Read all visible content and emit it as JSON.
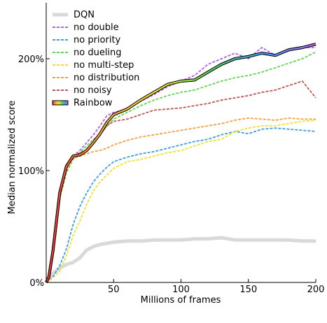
{
  "chart_data": {
    "type": "line",
    "xlabel": "Millions of frames",
    "ylabel": "Median normalized score",
    "xlim": [
      0,
      200
    ],
    "ylim": [
      0,
      250
    ],
    "x_ticks": [
      50,
      100,
      150,
      200
    ],
    "y_ticks": [
      0,
      100,
      200
    ],
    "x_tick_labels": [
      "50",
      "100",
      "150",
      "200"
    ],
    "y_tick_labels": [
      "0%",
      "100%",
      "200%"
    ],
    "grid": false,
    "legend_position": "top-left",
    "series": [
      {
        "name": "DQN",
        "color": "#d9d9d9",
        "width": 5,
        "x": [
          0,
          5,
          10,
          15,
          20,
          25,
          30,
          35,
          40,
          45,
          50,
          60,
          70,
          80,
          90,
          100,
          110,
          120,
          130,
          140,
          150,
          160,
          170,
          180,
          190,
          200
        ],
        "y": [
          0,
          8,
          13,
          16,
          18,
          22,
          29,
          32,
          34,
          35,
          36,
          37,
          37,
          38,
          38,
          38,
          39,
          39,
          40,
          38,
          38,
          38,
          38,
          38,
          37,
          37
        ]
      },
      {
        "name": "no double",
        "color": "#b55ee8",
        "width": 1.8,
        "dash": "4,2",
        "x": [
          0,
          2,
          5,
          10,
          15,
          20,
          25,
          30,
          35,
          40,
          45,
          50,
          60,
          70,
          80,
          90,
          100,
          110,
          120,
          130,
          140,
          150,
          160,
          170,
          180,
          190,
          200
        ],
        "y": [
          0,
          5,
          28,
          80,
          102,
          113,
          118,
          125,
          132,
          140,
          149,
          152,
          155,
          162,
          168,
          175,
          180,
          185,
          195,
          200,
          205,
          200,
          210,
          203,
          207,
          210,
          210
        ]
      },
      {
        "name": "no priority",
        "color": "#3b9de8",
        "width": 1.8,
        "dash": "4,2",
        "x": [
          0,
          5,
          10,
          15,
          20,
          25,
          30,
          35,
          40,
          45,
          50,
          60,
          70,
          80,
          90,
          100,
          110,
          120,
          130,
          140,
          150,
          160,
          170,
          180,
          190,
          200
        ],
        "y": [
          0,
          5,
          15,
          30,
          52,
          68,
          80,
          90,
          97,
          103,
          108,
          112,
          115,
          117,
          120,
          123,
          126,
          128,
          132,
          135,
          133,
          137,
          138,
          137,
          136,
          135
        ]
      },
      {
        "name": "no dueling",
        "color": "#5fd655",
        "width": 1.8,
        "dash": "4,2",
        "x": [
          0,
          2,
          5,
          10,
          15,
          20,
          25,
          30,
          35,
          40,
          45,
          50,
          60,
          70,
          80,
          90,
          100,
          110,
          120,
          130,
          140,
          150,
          160,
          170,
          180,
          190,
          200
        ],
        "y": [
          0,
          5,
          25,
          75,
          98,
          110,
          116,
          122,
          128,
          132,
          140,
          146,
          152,
          158,
          163,
          167,
          170,
          172,
          176,
          180,
          183,
          185,
          188,
          192,
          196,
          200,
          206
        ]
      },
      {
        "name": "no multi-step",
        "color": "#f2e02d",
        "width": 1.8,
        "dash": "4,2",
        "x": [
          0,
          5,
          10,
          15,
          20,
          25,
          30,
          35,
          40,
          45,
          50,
          60,
          70,
          80,
          90,
          100,
          110,
          120,
          130,
          140,
          150,
          160,
          170,
          180,
          190,
          200
        ],
        "y": [
          0,
          4,
          10,
          24,
          42,
          55,
          70,
          82,
          90,
          96,
          102,
          108,
          110,
          113,
          116,
          118,
          122,
          126,
          128,
          135,
          138,
          140,
          140,
          142,
          144,
          145
        ]
      },
      {
        "name": "no distribution",
        "color": "#f6a13a",
        "width": 1.8,
        "dash": "4,2",
        "x": [
          0,
          2,
          5,
          10,
          15,
          20,
          25,
          30,
          35,
          40,
          45,
          50,
          60,
          70,
          80,
          90,
          100,
          110,
          120,
          130,
          140,
          150,
          160,
          170,
          180,
          190,
          200
        ],
        "y": [
          0,
          5,
          25,
          75,
          100,
          111,
          113,
          115,
          117,
          118,
          120,
          123,
          127,
          130,
          132,
          134,
          136,
          138,
          140,
          142,
          145,
          147,
          146,
          145,
          147,
          146,
          146
        ]
      },
      {
        "name": "no noisy",
        "color": "#c4554e",
        "width": 1.8,
        "dash": "4,2",
        "x": [
          0,
          2,
          5,
          10,
          15,
          20,
          25,
          30,
          35,
          40,
          45,
          50,
          60,
          70,
          80,
          90,
          100,
          110,
          120,
          130,
          140,
          150,
          160,
          170,
          180,
          190,
          200
        ],
        "y": [
          0,
          5,
          28,
          80,
          103,
          112,
          116,
          118,
          125,
          132,
          140,
          144,
          146,
          150,
          154,
          155,
          156,
          158,
          160,
          163,
          165,
          167,
          170,
          172,
          176,
          180,
          165
        ]
      },
      {
        "name": "Rainbow",
        "color": "rainbow",
        "width": 2.2,
        "x": [
          0,
          2,
          5,
          10,
          15,
          20,
          25,
          30,
          35,
          40,
          45,
          50,
          60,
          70,
          80,
          90,
          100,
          110,
          120,
          130,
          140,
          150,
          160,
          170,
          180,
          190,
          200
        ],
        "y": [
          0,
          5,
          28,
          80,
          104,
          113,
          114,
          118,
          125,
          133,
          143,
          150,
          155,
          163,
          170,
          177,
          180,
          181,
          188,
          195,
          200,
          202,
          205,
          203,
          208,
          210,
          213
        ]
      }
    ]
  }
}
